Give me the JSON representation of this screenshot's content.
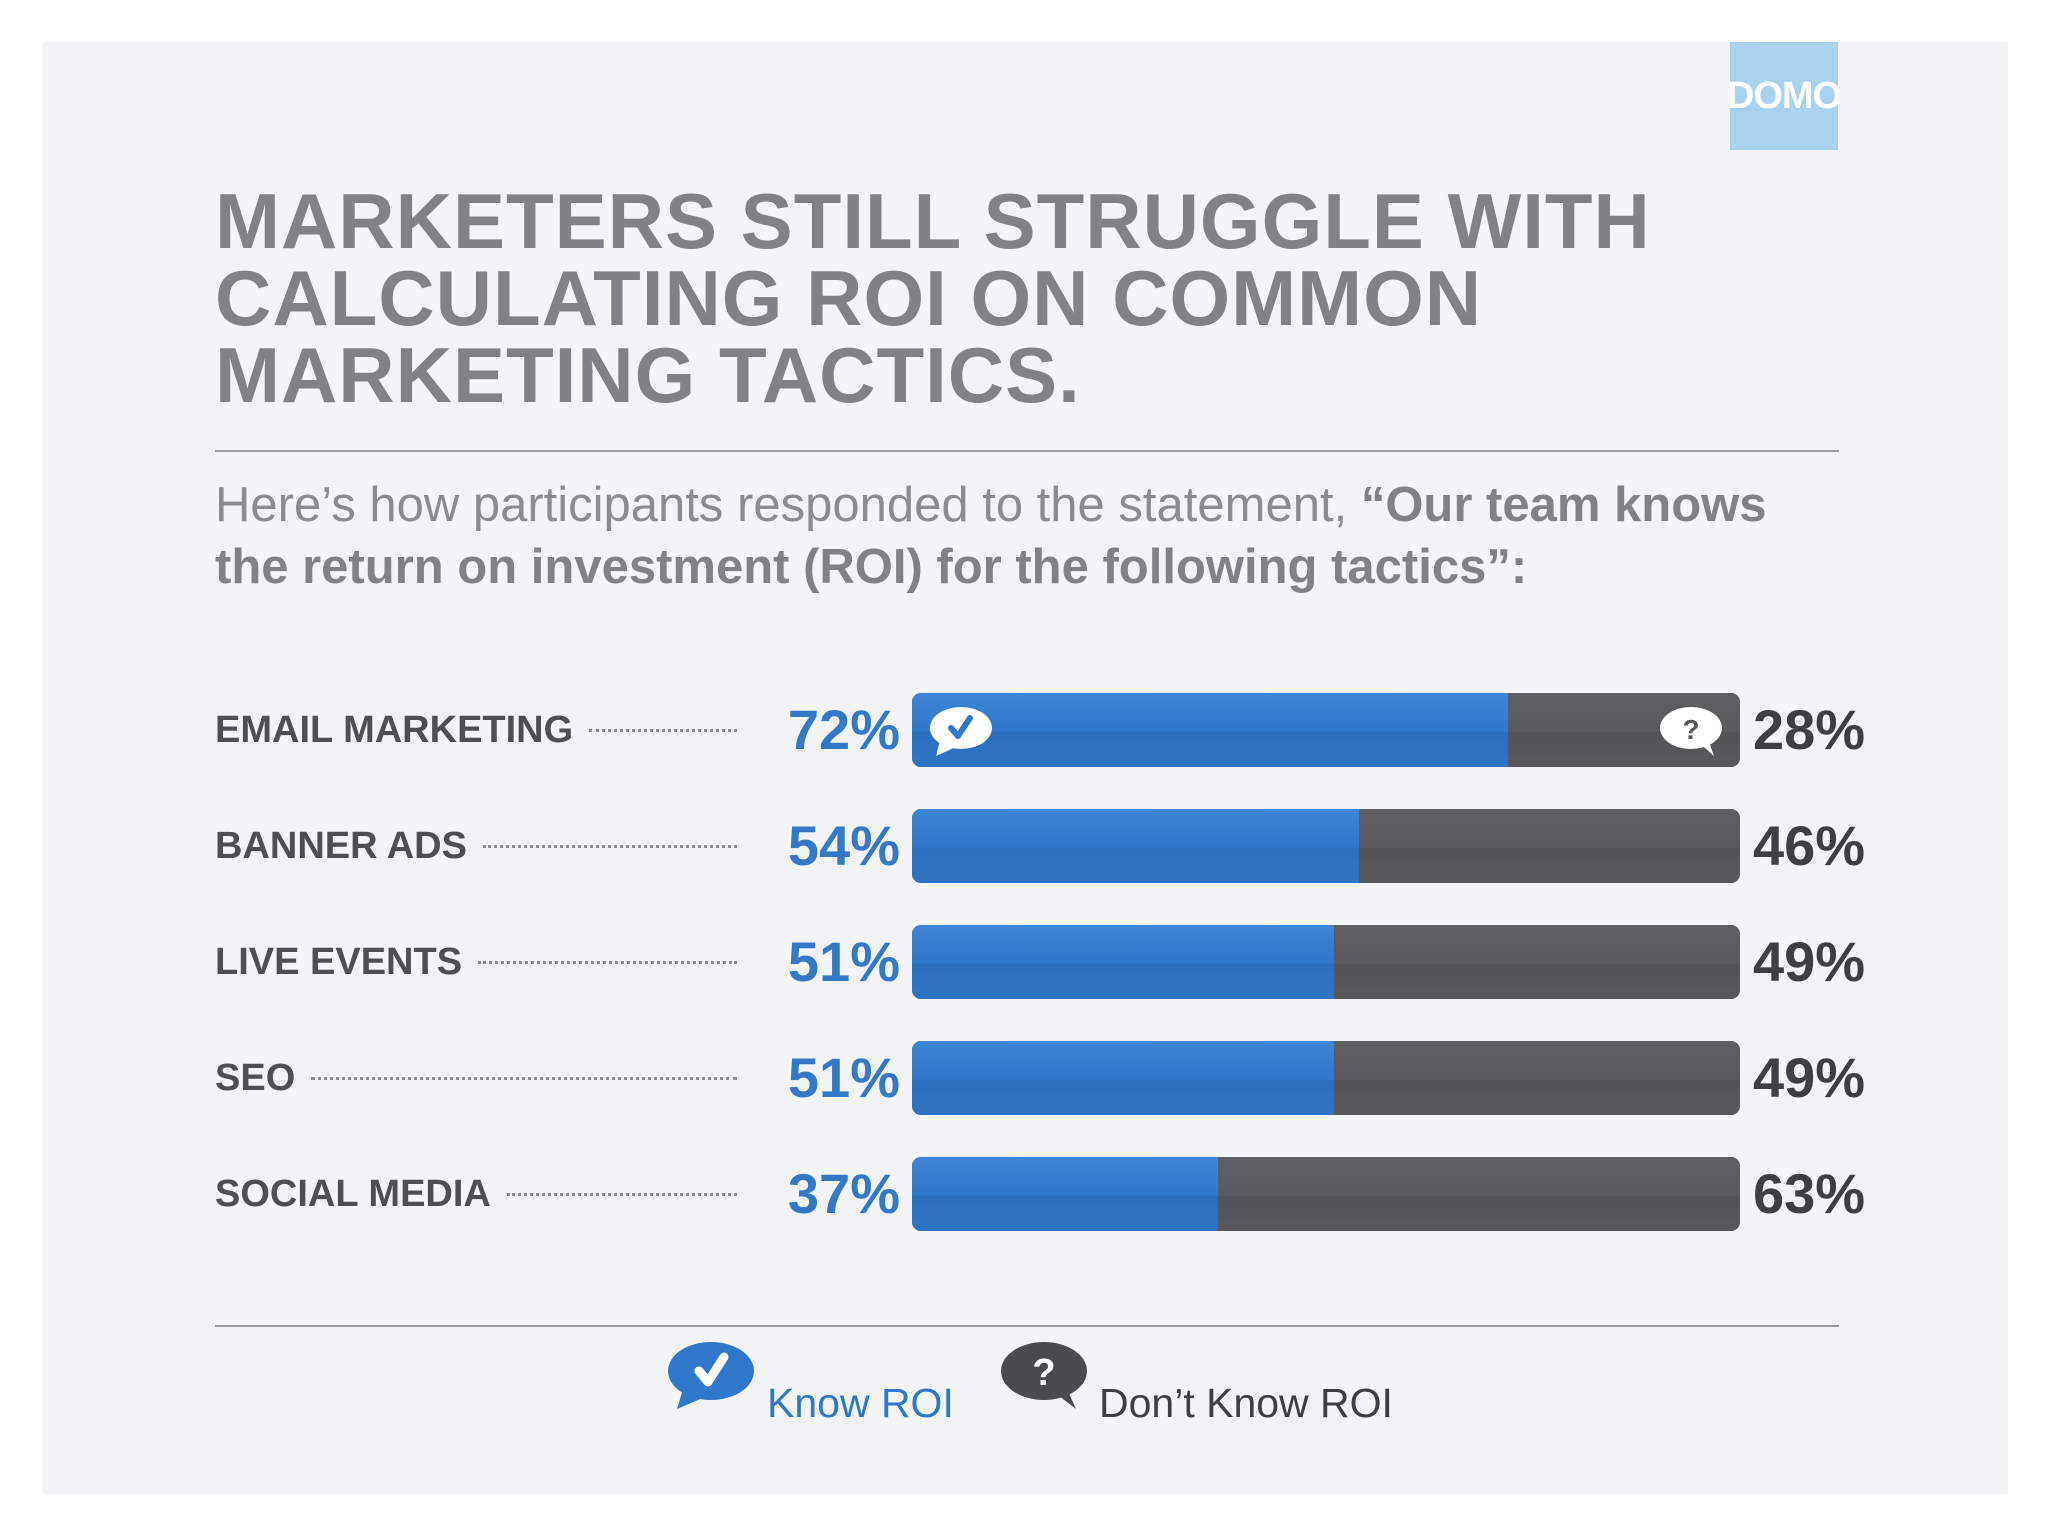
{
  "brand": {
    "logo_text": "DOMO",
    "logo_color": "#a9d2ee"
  },
  "title": "MARKETERS STILL STRUGGLE WITH\nCALCULATING ROI ON COMMON\nMARKETING TACTICS.",
  "subtitle": {
    "lead": "Here’s how participants responded to the statement, ",
    "quote": "“Our team knows the return on investment (ROI) for the following tactics”:"
  },
  "colors": {
    "know": "#2f78cc",
    "dont_know": "#58595b",
    "title": "#808284"
  },
  "icons": {
    "know": "check-speech-bubble-icon",
    "dont_know": "question-speech-bubble-icon"
  },
  "chart_data": {
    "type": "bar",
    "orientation": "horizontal",
    "stacked": true,
    "categories": [
      "EMAIL MARKETING",
      "BANNER ADS",
      "LIVE EVENTS",
      "SEO",
      "SOCIAL MEDIA"
    ],
    "series": [
      {
        "name": "Know ROI",
        "values": [
          72,
          54,
          51,
          51,
          37
        ]
      },
      {
        "name": "Don’t Know ROI",
        "values": [
          28,
          46,
          49,
          49,
          63
        ]
      }
    ],
    "value_labels_know": [
      "72%",
      "54%",
      "51%",
      "51%",
      "37%"
    ],
    "value_labels_dont_know": [
      "28%",
      "46%",
      "49%",
      "49%",
      "63%"
    ],
    "xlim": [
      0,
      100
    ],
    "grid": false,
    "legend_position": "bottom-center"
  },
  "legend": {
    "know_label": "Know ROI",
    "dont_know_label": "Don’t Know ROI"
  }
}
